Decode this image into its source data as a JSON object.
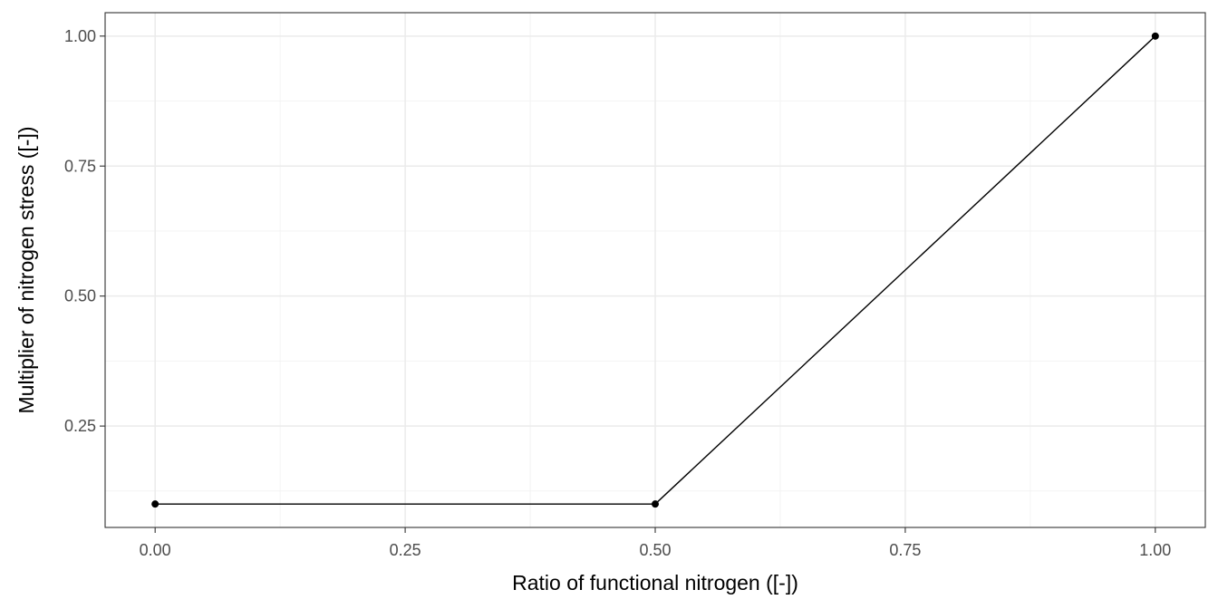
{
  "chart_data": {
    "type": "line",
    "title": "",
    "xlabel": "Ratio of functional nitrogen ([-])",
    "ylabel": "Multiplier of nitrogen stress ([-])",
    "xlim": [
      -0.05,
      1.05
    ],
    "ylim": [
      0.055,
      1.045
    ],
    "x_ticks": [
      0.0,
      0.25,
      0.5,
      0.75,
      1.0
    ],
    "x_tick_labels": [
      "0.00",
      "0.25",
      "0.50",
      "0.75",
      "1.00"
    ],
    "y_ticks": [
      0.25,
      0.5,
      0.75,
      1.0
    ],
    "y_tick_labels": [
      "0.25",
      "0.50",
      "0.75",
      "1.00"
    ],
    "x_minor_ticks": [
      0.125,
      0.375,
      0.625,
      0.875
    ],
    "y_minor_ticks": [
      0.125,
      0.375,
      0.625,
      0.875
    ],
    "grid": true,
    "legend": "none",
    "series": [
      {
        "x": [
          0.0,
          0.5,
          1.0
        ],
        "y": [
          0.1,
          0.1,
          1.0
        ],
        "color": "#000000",
        "markers": true
      }
    ]
  }
}
